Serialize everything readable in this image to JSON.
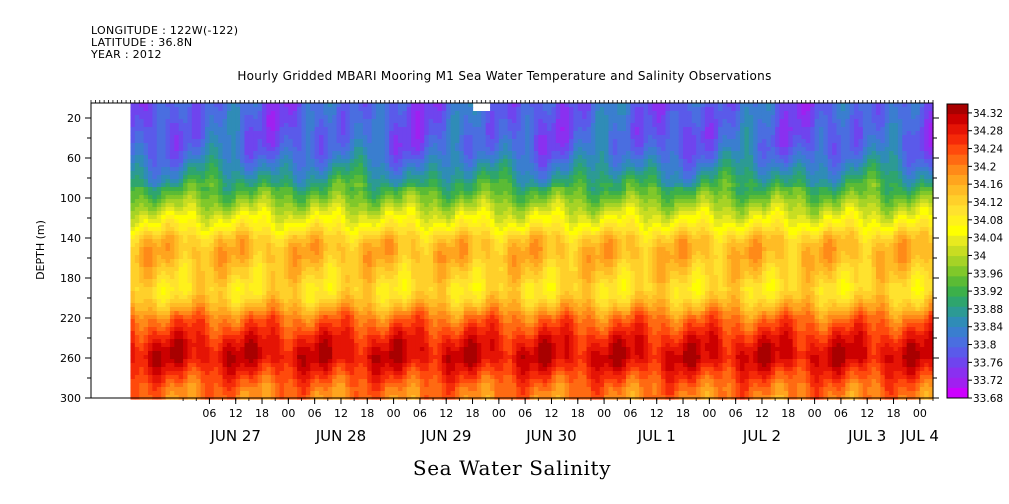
{
  "header": {
    "longitude": "LONGITUDE : 122W(-122)",
    "latitude": "LATITUDE : 36.8N",
    "year": "YEAR : 2012"
  },
  "title": "Hourly Gridded MBARI Mooring M1 Sea Water Temperature and Salinity Observations",
  "xlabel": "Sea Water Salinity",
  "ylabel": "DEPTH (m)",
  "colors": {
    "background": "#ffffff",
    "palette": [
      "#cc00ff",
      "#a020f0",
      "#8a30f0",
      "#6f44ee",
      "#5a5aea",
      "#4a6ee0",
      "#3a7ecf",
      "#2f8cb7",
      "#2c9a94",
      "#2ea56e",
      "#3cb04a",
      "#5bbb35",
      "#80c82a",
      "#a6d326",
      "#c8dd22",
      "#e8ea1f",
      "#ffff00",
      "#fff11c",
      "#ffe22e",
      "#ffd02a",
      "#ffbc25",
      "#ffa51e",
      "#ff8a18",
      "#ff6a12",
      "#ff4a0c",
      "#f52a08",
      "#e51405",
      "#cc0000",
      "#a80000"
    ]
  },
  "chart_data": {
    "type": "heatmap",
    "title": "Hourly Gridded MBARI Mooring M1 Sea Water Temperature and Salinity Observations",
    "xlabel": "Sea Water Salinity",
    "ylabel": "DEPTH (m)",
    "x_units": "hours since 2012-06-26 00:00 UTC",
    "xlim": [
      3,
      195
    ],
    "data_start_hour": 12,
    "ylim": [
      300,
      5
    ],
    "y_ticks": [
      20,
      60,
      100,
      140,
      180,
      220,
      260,
      300
    ],
    "x_hour_ticks": [
      {
        "h": 30,
        "label": "06"
      },
      {
        "h": 36,
        "label": "12"
      },
      {
        "h": 42,
        "label": "18"
      },
      {
        "h": 48,
        "label": "00"
      },
      {
        "h": 54,
        "label": "06"
      },
      {
        "h": 60,
        "label": "12"
      },
      {
        "h": 66,
        "label": "18"
      },
      {
        "h": 72,
        "label": "00"
      },
      {
        "h": 78,
        "label": "06"
      },
      {
        "h": 84,
        "label": "12"
      },
      {
        "h": 90,
        "label": "18"
      },
      {
        "h": 96,
        "label": "00"
      },
      {
        "h": 102,
        "label": "06"
      },
      {
        "h": 108,
        "label": "12"
      },
      {
        "h": 114,
        "label": "18"
      },
      {
        "h": 120,
        "label": "00"
      },
      {
        "h": 126,
        "label": "06"
      },
      {
        "h": 132,
        "label": "12"
      },
      {
        "h": 138,
        "label": "18"
      },
      {
        "h": 144,
        "label": "00"
      },
      {
        "h": 150,
        "label": "06"
      },
      {
        "h": 156,
        "label": "12"
      },
      {
        "h": 162,
        "label": "18"
      },
      {
        "h": 168,
        "label": "00"
      },
      {
        "h": 174,
        "label": "06"
      },
      {
        "h": 180,
        "label": "12"
      },
      {
        "h": 186,
        "label": "18"
      },
      {
        "h": 192,
        "label": "00"
      }
    ],
    "x_day_labels": [
      {
        "h": 36,
        "label": "JUN 27"
      },
      {
        "h": 60,
        "label": "JUN 28"
      },
      {
        "h": 84,
        "label": "JUN 29"
      },
      {
        "h": 108,
        "label": "JUN 30"
      },
      {
        "h": 132,
        "label": "JUL  1"
      },
      {
        "h": 156,
        "label": "JUL  2"
      },
      {
        "h": 180,
        "label": "JUL  3"
      },
      {
        "h": 192,
        "label": "JUL  4"
      }
    ],
    "colorbar_levels": [
      "34.32",
      "34.28",
      "34.24",
      "34.2",
      "34.16",
      "34.12",
      "34.08",
      "34.04",
      "34",
      "33.96",
      "33.92",
      "33.88",
      "33.84",
      "33.8",
      "33.76",
      "33.72",
      "33.68"
    ],
    "colorbar_min": 33.68,
    "colorbar_max": 34.34,
    "depths": [
      5,
      10,
      20,
      30,
      40,
      50,
      60,
      70,
      80,
      90,
      100,
      110,
      120,
      130,
      140,
      150,
      160,
      170,
      180,
      190,
      200,
      210,
      220,
      230,
      240,
      250,
      260,
      270,
      280,
      290,
      300
    ],
    "salinity_profile_typical": [
      33.79,
      33.79,
      33.79,
      33.79,
      33.79,
      33.8,
      33.82,
      33.85,
      33.88,
      33.92,
      33.96,
      34.0,
      34.04,
      34.08,
      34.13,
      34.15,
      34.15,
      34.13,
      34.12,
      34.1,
      34.12,
      34.16,
      34.21,
      34.24,
      34.27,
      34.29,
      34.3,
      34.27,
      34.24,
      34.21,
      34.2
    ],
    "missing_regions": [
      {
        "x_hours": [
          3,
          12
        ],
        "depth_m": [
          5,
          300
        ]
      },
      {
        "x_hours": [
          90,
          94
        ],
        "depth_m": [
          5,
          12
        ]
      }
    ]
  }
}
